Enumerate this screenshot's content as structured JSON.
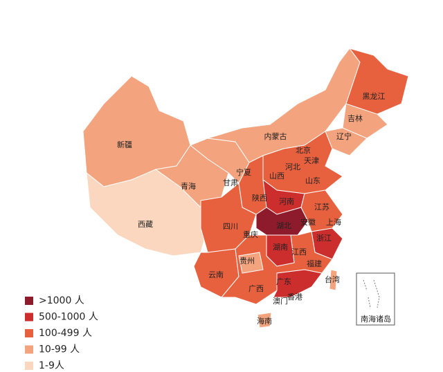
{
  "regions": [
    {
      "label": "新疆"
    },
    {
      "label": "西藏"
    },
    {
      "label": "青海"
    },
    {
      "label": "甘肃"
    },
    {
      "label": "内蒙古"
    },
    {
      "label": "宁夏"
    },
    {
      "label": "陕西"
    },
    {
      "label": "山西"
    },
    {
      "label": "河北"
    },
    {
      "label": "北京"
    },
    {
      "label": "天津"
    },
    {
      "label": "辽宁"
    },
    {
      "label": "吉林"
    },
    {
      "label": "黑龙江"
    },
    {
      "label": "山东"
    },
    {
      "label": "河南"
    },
    {
      "label": "江苏"
    },
    {
      "label": "安徽"
    },
    {
      "label": "上海"
    },
    {
      "label": "湖北"
    },
    {
      "label": "四川"
    },
    {
      "label": "重庆"
    },
    {
      "label": "浙江"
    },
    {
      "label": "湖南"
    },
    {
      "label": "江西"
    },
    {
      "label": "贵州"
    },
    {
      "label": "云南"
    },
    {
      "label": "福建"
    },
    {
      "label": "广西"
    },
    {
      "label": "广东"
    },
    {
      "label": "台湾"
    },
    {
      "label": "澳门"
    },
    {
      "label": "香港"
    },
    {
      "label": "海南"
    }
  ],
  "inset": {
    "label": "南海诸岛"
  },
  "legend": [
    {
      "label": ">1000 人",
      "color": "#8e1b2c"
    },
    {
      "label": "500-1000 人",
      "color": "#cc2e2e"
    },
    {
      "label": "100-499 人",
      "color": "#e8613f"
    },
    {
      "label": "10-99 人",
      "color": "#f3a37d"
    },
    {
      "label": "1-9人",
      "color": "#fbd7bf"
    }
  ]
}
